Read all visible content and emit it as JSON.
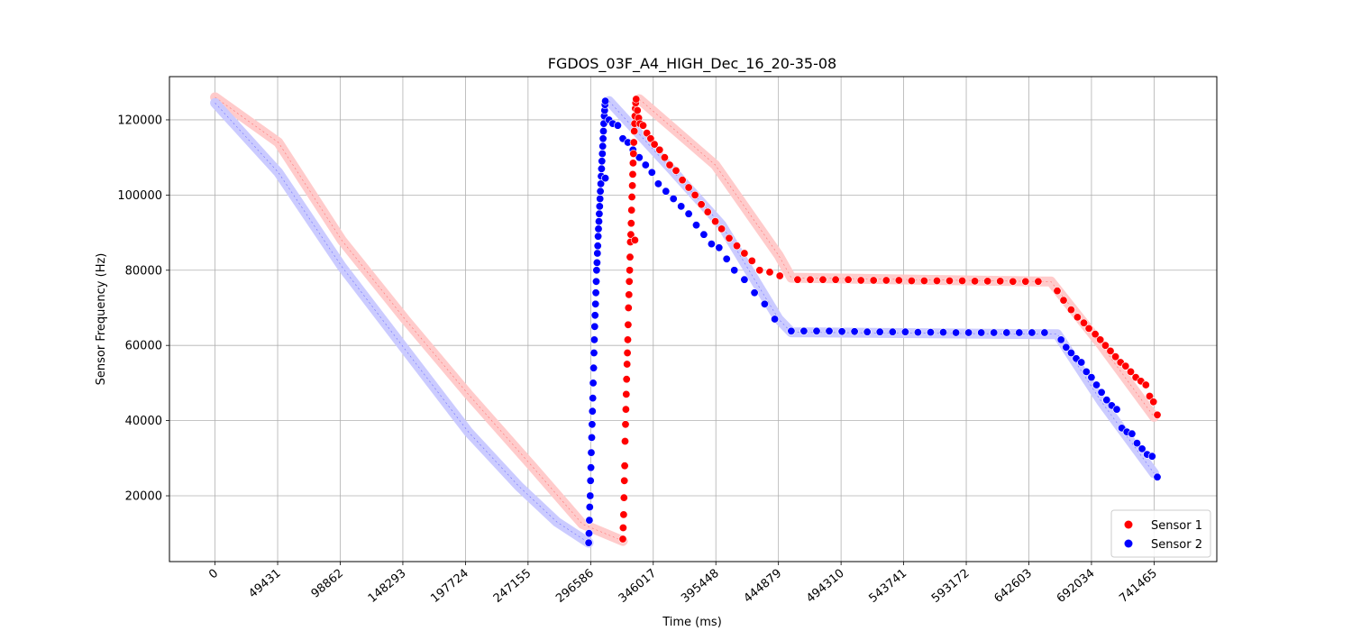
{
  "chart_data": {
    "type": "scatter",
    "title": "FGDOS_03F_A4_HIGH_Dec_16_20-35-08",
    "xlabel": "Time (ms)",
    "ylabel": "Sensor Frequency (Hz)",
    "xlim": [
      -36000,
      791000
    ],
    "ylim": [
      2500,
      131500
    ],
    "xticks": [
      0,
      49431,
      98862,
      148293,
      197724,
      247155,
      296586,
      346017,
      395448,
      444879,
      494310,
      543741,
      593172,
      642603,
      692034,
      741465
    ],
    "yticks": [
      20000,
      40000,
      60000,
      80000,
      100000,
      120000
    ],
    "grid": true,
    "legend_position": "lower-right",
    "series": [
      {
        "name": "Sensor 1",
        "color": "#ff0000",
        "trend_color": "#ffc8c8",
        "trend": [
          [
            0,
            126000
          ],
          [
            50000,
            114000
          ],
          [
            100000,
            88000
          ],
          [
            150000,
            67000
          ],
          [
            200000,
            47000
          ],
          [
            250000,
            28000
          ],
          [
            290000,
            12500
          ],
          [
            322000,
            8000
          ]
        ],
        "trend2": [
          [
            335000,
            125500
          ],
          [
            395000,
            108000
          ],
          [
            445000,
            84000
          ],
          [
            455000,
            78000
          ],
          [
            650000,
            77000
          ],
          [
            660000,
            77000
          ],
          [
            700000,
            60000
          ],
          [
            741465,
            41000
          ]
        ],
        "points": [
          [
            322000,
            8500
          ],
          [
            322300,
            11500
          ],
          [
            322600,
            15000
          ],
          [
            322900,
            19500
          ],
          [
            323200,
            24000
          ],
          [
            323500,
            28000
          ],
          [
            323800,
            34500
          ],
          [
            324100,
            39000
          ],
          [
            324400,
            43000
          ],
          [
            324700,
            47000
          ],
          [
            325000,
            51000
          ],
          [
            325300,
            55000
          ],
          [
            325600,
            58000
          ],
          [
            325900,
            61500
          ],
          [
            326200,
            65500
          ],
          [
            326500,
            70000
          ],
          [
            326800,
            73500
          ],
          [
            327100,
            77000
          ],
          [
            327400,
            80000
          ],
          [
            327700,
            83500
          ],
          [
            328000,
            87500
          ],
          [
            328300,
            89500
          ],
          [
            328600,
            92500
          ],
          [
            328900,
            96000
          ],
          [
            329200,
            99500
          ],
          [
            329500,
            102500
          ],
          [
            329800,
            105500
          ],
          [
            330100,
            108500
          ],
          [
            330400,
            111000
          ],
          [
            330700,
            114000
          ],
          [
            331000,
            117000
          ],
          [
            331300,
            119000
          ],
          [
            331600,
            121000
          ],
          [
            331900,
            123000
          ],
          [
            332200,
            124500
          ],
          [
            332500,
            125500
          ],
          [
            331500,
            88000
          ],
          [
            333500,
            122500
          ],
          [
            334500,
            120500
          ],
          [
            335500,
            119000
          ],
          [
            338000,
            118500
          ],
          [
            341000,
            116500
          ],
          [
            344000,
            115000
          ],
          [
            347000,
            113500
          ],
          [
            351000,
            112000
          ],
          [
            355000,
            110000
          ],
          [
            359000,
            108000
          ],
          [
            364000,
            106500
          ],
          [
            369000,
            104000
          ],
          [
            374000,
            102000
          ],
          [
            379000,
            100000
          ],
          [
            384000,
            97500
          ],
          [
            389000,
            95500
          ],
          [
            395000,
            93000
          ],
          [
            400000,
            91000
          ],
          [
            406000,
            88500
          ],
          [
            412000,
            86500
          ],
          [
            418000,
            84500
          ],
          [
            424000,
            82500
          ],
          [
            430000,
            80000
          ],
          [
            438000,
            79500
          ],
          [
            446000,
            78500
          ],
          [
            460000,
            77500
          ],
          [
            470000,
            77500
          ],
          [
            480000,
            77500
          ],
          [
            490000,
            77500
          ],
          [
            500000,
            77500
          ],
          [
            510000,
            77300
          ],
          [
            520000,
            77300
          ],
          [
            530000,
            77300
          ],
          [
            540000,
            77300
          ],
          [
            550000,
            77200
          ],
          [
            560000,
            77200
          ],
          [
            570000,
            77200
          ],
          [
            580000,
            77200
          ],
          [
            590000,
            77200
          ],
          [
            600000,
            77100
          ],
          [
            610000,
            77100
          ],
          [
            620000,
            77100
          ],
          [
            630000,
            77000
          ],
          [
            640000,
            77000
          ],
          [
            650000,
            77000
          ],
          [
            665000,
            74500
          ],
          [
            670000,
            72000
          ],
          [
            676000,
            69500
          ],
          [
            681000,
            67500
          ],
          [
            686000,
            66000
          ],
          [
            690000,
            64500
          ],
          [
            695000,
            63000
          ],
          [
            699000,
            61500
          ],
          [
            703000,
            60000
          ],
          [
            707000,
            58500
          ],
          [
            711000,
            57000
          ],
          [
            715000,
            55500
          ],
          [
            719000,
            54500
          ],
          [
            723000,
            53000
          ],
          [
            727000,
            51500
          ],
          [
            731000,
            50500
          ],
          [
            735000,
            49500
          ],
          [
            738000,
            46500
          ],
          [
            741000,
            45000
          ],
          [
            744000,
            41500
          ]
        ]
      },
      {
        "name": "Sensor 2",
        "color": "#0000ff",
        "trend_color": "#c8c8ff",
        "trend": [
          [
            0,
            124500
          ],
          [
            50000,
            106000
          ],
          [
            100000,
            81000
          ],
          [
            150000,
            59000
          ],
          [
            200000,
            37000
          ],
          [
            240000,
            22500
          ],
          [
            270000,
            13000
          ],
          [
            295000,
            7500
          ]
        ],
        "trend2": [
          [
            311000,
            125000
          ],
          [
            360000,
            107000
          ],
          [
            400000,
            92000
          ],
          [
            445000,
            67000
          ],
          [
            455000,
            63500
          ],
          [
            655000,
            63000
          ],
          [
            665000,
            63000
          ],
          [
            700000,
            45000
          ],
          [
            741465,
            26000
          ]
        ],
        "points": [
          [
            295000,
            7500
          ],
          [
            295300,
            10000
          ],
          [
            295600,
            13500
          ],
          [
            295900,
            17000
          ],
          [
            296200,
            20000
          ],
          [
            296500,
            24000
          ],
          [
            296800,
            27500
          ],
          [
            297100,
            31500
          ],
          [
            297400,
            35500
          ],
          [
            297700,
            39000
          ],
          [
            298000,
            42500
          ],
          [
            298300,
            46000
          ],
          [
            298600,
            50000
          ],
          [
            298900,
            54000
          ],
          [
            299200,
            58000
          ],
          [
            299500,
            61500
          ],
          [
            299800,
            65000
          ],
          [
            300100,
            68000
          ],
          [
            300400,
            71000
          ],
          [
            300700,
            74000
          ],
          [
            301000,
            77000
          ],
          [
            301300,
            80000
          ],
          [
            301600,
            82000
          ],
          [
            301900,
            84500
          ],
          [
            302200,
            86500
          ],
          [
            302500,
            89000
          ],
          [
            302800,
            91000
          ],
          [
            303100,
            93000
          ],
          [
            303400,
            95000
          ],
          [
            303700,
            97000
          ],
          [
            304000,
            99000
          ],
          [
            304300,
            101000
          ],
          [
            304600,
            103000
          ],
          [
            304900,
            105000
          ],
          [
            305200,
            107000
          ],
          [
            305500,
            109000
          ],
          [
            305800,
            111000
          ],
          [
            306100,
            113000
          ],
          [
            306400,
            115000
          ],
          [
            306700,
            117000
          ],
          [
            307000,
            119000
          ],
          [
            307300,
            121000
          ],
          [
            307600,
            122500
          ],
          [
            307900,
            124000
          ],
          [
            308200,
            125000
          ],
          [
            308200,
            104500
          ],
          [
            311000,
            120000
          ],
          [
            314000,
            119000
          ],
          [
            318000,
            118500
          ],
          [
            322000,
            115000
          ],
          [
            326000,
            114000
          ],
          [
            330000,
            112000
          ],
          [
            335000,
            110000
          ],
          [
            340000,
            108000
          ],
          [
            345000,
            106000
          ],
          [
            350000,
            103000
          ],
          [
            356000,
            101000
          ],
          [
            362000,
            99000
          ],
          [
            368000,
            97000
          ],
          [
            374000,
            95000
          ],
          [
            380000,
            92000
          ],
          [
            386000,
            89500
          ],
          [
            392000,
            87000
          ],
          [
            398000,
            86000
          ],
          [
            404000,
            83000
          ],
          [
            410000,
            80000
          ],
          [
            418000,
            77500
          ],
          [
            426000,
            74000
          ],
          [
            434000,
            71000
          ],
          [
            442000,
            67000
          ],
          [
            455000,
            63800
          ],
          [
            465000,
            63800
          ],
          [
            475000,
            63800
          ],
          [
            485000,
            63800
          ],
          [
            495000,
            63700
          ],
          [
            505000,
            63700
          ],
          [
            515000,
            63600
          ],
          [
            525000,
            63600
          ],
          [
            535000,
            63600
          ],
          [
            545000,
            63600
          ],
          [
            555000,
            63500
          ],
          [
            565000,
            63500
          ],
          [
            575000,
            63500
          ],
          [
            585000,
            63400
          ],
          [
            595000,
            63400
          ],
          [
            605000,
            63400
          ],
          [
            615000,
            63400
          ],
          [
            625000,
            63400
          ],
          [
            635000,
            63400
          ],
          [
            645000,
            63400
          ],
          [
            655000,
            63400
          ],
          [
            668000,
            61500
          ],
          [
            672000,
            59500
          ],
          [
            676000,
            58000
          ],
          [
            680000,
            56500
          ],
          [
            684000,
            55500
          ],
          [
            688000,
            53000
          ],
          [
            692000,
            51500
          ],
          [
            696000,
            49500
          ],
          [
            700000,
            47500
          ],
          [
            704000,
            45500
          ],
          [
            708000,
            44000
          ],
          [
            712000,
            43000
          ],
          [
            716000,
            38000
          ],
          [
            720000,
            37000
          ],
          [
            724000,
            36500
          ],
          [
            728000,
            34000
          ],
          [
            732000,
            32500
          ],
          [
            736000,
            31000
          ],
          [
            740000,
            30500
          ],
          [
            744000,
            25000
          ]
        ]
      }
    ]
  }
}
